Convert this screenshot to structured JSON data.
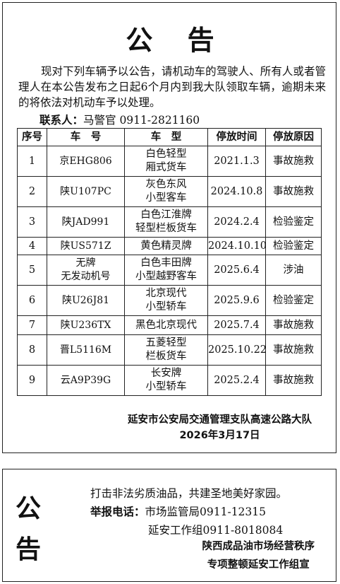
{
  "notice": {
    "title": "公 告",
    "intro": "现对下列车辆予以公告，请机动车的驾驶人、所有人或者管理人在本公告发布之日起6个月内到我大队领取车辆，逾期未来的将依法对机动车予以处理。",
    "contact_label": "联系人：",
    "contact_value": "马警官 0911-2821160",
    "headers": [
      "序号",
      "车　号",
      "车　型",
      "停放时间",
      "停放原因"
    ],
    "rows": [
      {
        "no": "1",
        "plate": "京EHG806",
        "type1": "白色轻型",
        "type2": "厢式货车",
        "time": "2021.1.3",
        "reason": "事故施救"
      },
      {
        "no": "2",
        "plate": "陕U107PC",
        "type1": "灰色东风",
        "type2": "小型客车",
        "time": "2024.10.8",
        "reason": "事故施救"
      },
      {
        "no": "3",
        "plate": "陕JAD991",
        "type1": "白色江淮牌",
        "type2": "轻型栏板货车",
        "time": "2024.2.4",
        "reason": "检验鉴定"
      },
      {
        "no": "4",
        "plate": "陕US571Z",
        "type1": "黄色精灵牌",
        "type2": "",
        "time": "2024.10.10",
        "reason": "检验鉴定"
      },
      {
        "no": "5",
        "plate": "无牌",
        "plate2": "无发动机号",
        "type1": "白色丰田牌",
        "type2": "小型越野客车",
        "time": "2025.6.4",
        "reason": "涉油"
      },
      {
        "no": "6",
        "plate": "陕U26J81",
        "type1": "北京现代",
        "type2": "小型轿车",
        "time": "2025.9.6",
        "reason": "检验鉴定"
      },
      {
        "no": "7",
        "plate": "陕U236TX",
        "type1": "黑色北京现代",
        "type2": "",
        "time": "2025.7.4",
        "reason": "事故施救"
      },
      {
        "no": "8",
        "plate": "晋L5116M",
        "type1": "五菱轻型",
        "type2": "栏板货车",
        "time": "2025.10.22",
        "reason": "事故施救"
      },
      {
        "no": "9",
        "plate": "云A9P39G",
        "type1": "长安牌",
        "type2": "小型轿车",
        "time": "2025.2.4",
        "reason": "事故施救"
      }
    ],
    "issuer": "延安市公安局交通管理支队高速公路大队",
    "date": "2026年3月17日"
  },
  "notice2": {
    "char1": "公",
    "char2": "告",
    "slogan": "打击非法劣质油品，共建圣地美好家园。",
    "report_label": "举报电话：",
    "report_value1": "市场监管局0911-12315",
    "report_value2": "延安工作组0911-8018084",
    "issuer_line1": "陕西成品油市场经营秩序",
    "issuer_line2": "专项整顿延安工作组宣"
  }
}
